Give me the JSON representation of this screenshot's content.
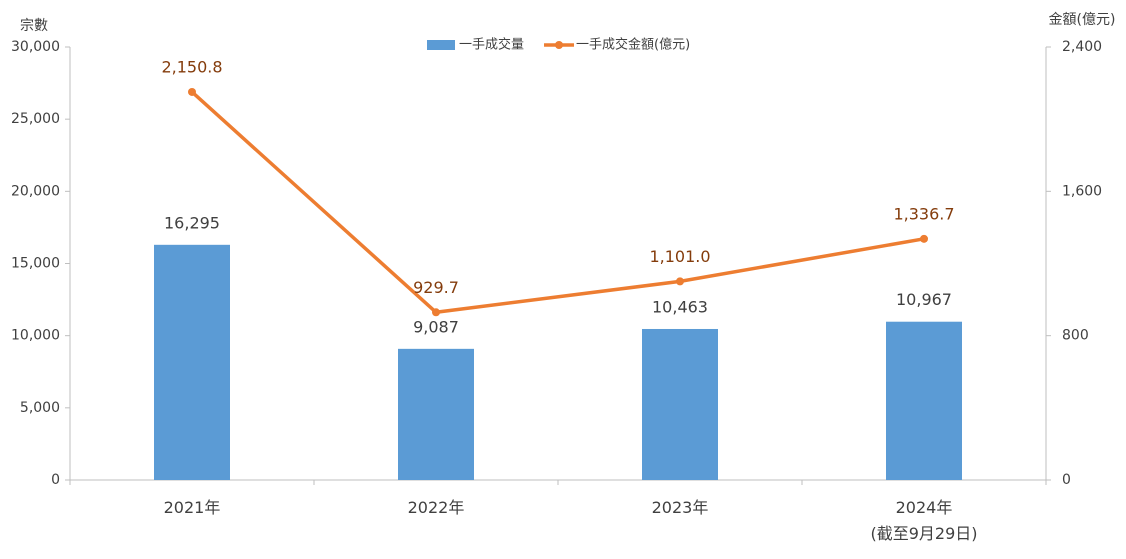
{
  "chart_data": {
    "type": "bar_line",
    "y_label": "宗數",
    "y2_label": "金額(億元)",
    "categories": [
      "2021年",
      "2022年",
      "2023年",
      "2024年\n(截至9月29日)"
    ],
    "series": [
      {
        "name": "一手成交量",
        "type": "bar",
        "color": "#5b9bd5",
        "values": [
          16295,
          9087,
          10463,
          10967
        ],
        "value_labels": [
          "16,295",
          "9,087",
          "10,463",
          "10,967"
        ]
      },
      {
        "name": "一手成交金額(億元)",
        "type": "line",
        "axis": "y2",
        "color": "#ed7d31",
        "label_color": "#843c0c",
        "values": [
          2150.8,
          929.7,
          1101.0,
          1336.7
        ],
        "value_labels": [
          "2,150.8",
          "929.7",
          "1,101.0",
          "1,336.7"
        ]
      }
    ],
    "ylim": [
      0,
      30000
    ],
    "yticks": [
      0,
      {
        "value": 5000,
        "label": "5,000"
      },
      {
        "value": 10000,
        "label": "10,000"
      },
      {
        "value": 15000,
        "label": "15,000"
      },
      {
        "value": 20000,
        "label": "20,000"
      },
      {
        "value": 25000,
        "label": "25,000"
      },
      {
        "value": 30000,
        "label": "30,000"
      }
    ],
    "y2lim": [
      0,
      2400
    ],
    "y2ticks": [
      0,
      800,
      {
        "value": 1600,
        "label": "1,600"
      },
      {
        "value": 2400,
        "label": "2,400"
      }
    ],
    "grid": false,
    "legend": "top"
  }
}
